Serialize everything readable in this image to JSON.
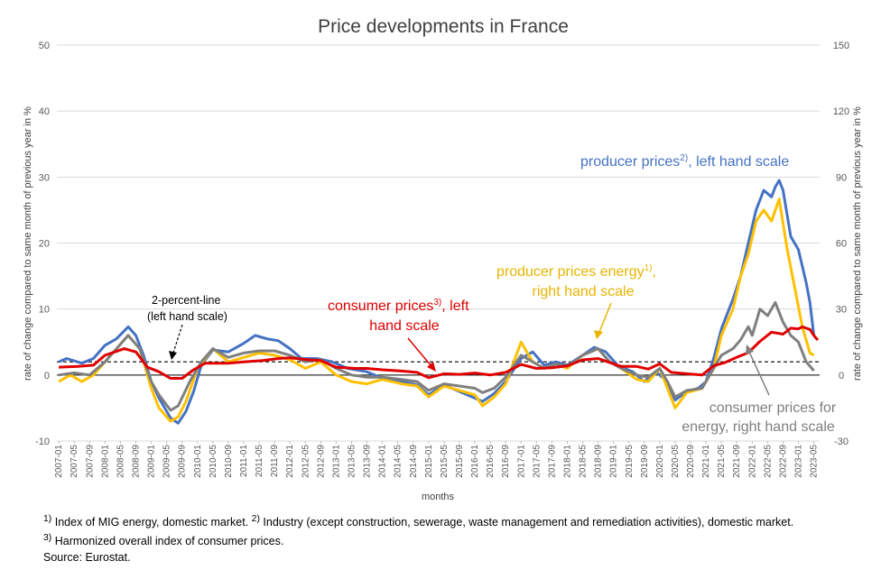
{
  "chart_data": {
    "type": "line",
    "title": "Price developments in France",
    "xlabel": "months",
    "ylabel_left": "rate of change compared to same month of previous year in %",
    "ylabel_right": "rate of change compared to same month of previous year in %",
    "ylim_left": [
      -10,
      50
    ],
    "ylim_right": [
      -30,
      150
    ],
    "yticks_left": [
      "-10",
      "0",
      "10",
      "20",
      "30",
      "40",
      "50"
    ],
    "yticks_right": [
      "-30",
      "0",
      "30",
      "60",
      "90",
      "120",
      "150"
    ],
    "x_start": "2007-01",
    "x_end": "2023-06",
    "x_tick_labels": [
      "2007-01",
      "2007-05",
      "2007-09",
      "2008-01",
      "2008-05",
      "2008-09",
      "2009-01",
      "2009-05",
      "2009-09",
      "2010-01",
      "2010-05",
      "2010-09",
      "2011-01",
      "2011-05",
      "2011-09",
      "2012-01",
      "2012-05",
      "2012-09",
      "2013-01",
      "2013-05",
      "2013-09",
      "2014-01",
      "2014-05",
      "2014-09",
      "2015-01",
      "2015-05",
      "2015-09",
      "2016-01",
      "2016-05",
      "2016-09",
      "2017-01",
      "2017-05",
      "2017-09",
      "2018-01",
      "2018-05",
      "2018-09",
      "2019-01",
      "2019-05",
      "2019-09",
      "2020-01",
      "2020-05",
      "2020-09",
      "2021-01",
      "2021-05",
      "2021-09",
      "2022-01",
      "2022-05",
      "2022-09",
      "2023-01",
      "2023-05"
    ],
    "reference_line": {
      "value": 2,
      "axis": "left"
    },
    "series": [
      {
        "key": "producer",
        "axis": "left",
        "color": "#4472C4",
        "points": [
          [
            "2007-01",
            2.0
          ],
          [
            "2007-03",
            2.5
          ],
          [
            "2007-07",
            1.8
          ],
          [
            "2007-10",
            2.5
          ],
          [
            "2008-01",
            4.5
          ],
          [
            "2008-04",
            5.5
          ],
          [
            "2008-07",
            7.3
          ],
          [
            "2008-09",
            6.0
          ],
          [
            "2008-11",
            3.0
          ],
          [
            "2009-01",
            -1.0
          ],
          [
            "2009-03",
            -3.5
          ],
          [
            "2009-06",
            -6.5
          ],
          [
            "2009-08",
            -7.3
          ],
          [
            "2009-10",
            -5.5
          ],
          [
            "2009-12",
            -2.5
          ],
          [
            "2010-02",
            1.5
          ],
          [
            "2010-05",
            3.8
          ],
          [
            "2010-09",
            3.5
          ],
          [
            "2011-01",
            4.8
          ],
          [
            "2011-04",
            6.0
          ],
          [
            "2011-07",
            5.5
          ],
          [
            "2011-10",
            5.2
          ],
          [
            "2012-01",
            4.0
          ],
          [
            "2012-04",
            2.5
          ],
          [
            "2012-08",
            2.5
          ],
          [
            "2012-12",
            2.0
          ],
          [
            "2013-04",
            1.0
          ],
          [
            "2013-09",
            0.5
          ],
          [
            "2014-01",
            -0.5
          ],
          [
            "2014-06",
            -1.0
          ],
          [
            "2014-10",
            -1.5
          ],
          [
            "2015-01",
            -3.0
          ],
          [
            "2015-05",
            -1.5
          ],
          [
            "2015-09",
            -2.5
          ],
          [
            "2016-01",
            -3.5
          ],
          [
            "2016-03",
            -4.0
          ],
          [
            "2016-06",
            -2.8
          ],
          [
            "2016-09",
            -1.0
          ],
          [
            "2017-01",
            2.5
          ],
          [
            "2017-04",
            3.5
          ],
          [
            "2017-07",
            1.5
          ],
          [
            "2017-10",
            2.0
          ],
          [
            "2018-01",
            1.5
          ],
          [
            "2018-05",
            3.0
          ],
          [
            "2018-08",
            4.2
          ],
          [
            "2018-11",
            3.5
          ],
          [
            "2019-02",
            1.5
          ],
          [
            "2019-06",
            0.5
          ],
          [
            "2019-09",
            -1.0
          ],
          [
            "2019-12",
            0.5
          ],
          [
            "2020-02",
            -0.5
          ],
          [
            "2020-05",
            -3.8
          ],
          [
            "2020-08",
            -2.5
          ],
          [
            "2020-11",
            -2.0
          ],
          [
            "2021-01",
            -1.0
          ],
          [
            "2021-03",
            2.5
          ],
          [
            "2021-05",
            7.0
          ],
          [
            "2021-08",
            11.5
          ],
          [
            "2021-10",
            15.0
          ],
          [
            "2021-12",
            20.0
          ],
          [
            "2022-02",
            25.0
          ],
          [
            "2022-04",
            28.0
          ],
          [
            "2022-06",
            27.0
          ],
          [
            "2022-07",
            28.5
          ],
          [
            "2022-08",
            29.5
          ],
          [
            "2022-09",
            28.0
          ],
          [
            "2022-11",
            21.0
          ],
          [
            "2023-01",
            19.0
          ],
          [
            "2023-03",
            14.0
          ],
          [
            "2023-04",
            11.0
          ],
          [
            "2023-05",
            6.0
          ]
        ]
      },
      {
        "key": "energy",
        "axis": "right",
        "color": "#FFC000",
        "points": [
          [
            "2007-01",
            -3.0
          ],
          [
            "2007-04",
            0.0
          ],
          [
            "2007-07",
            -3.0
          ],
          [
            "2007-10",
            0.0
          ],
          [
            "2008-01",
            6.0
          ],
          [
            "2008-04",
            12.0
          ],
          [
            "2008-07",
            18.0
          ],
          [
            "2008-10",
            12.0
          ],
          [
            "2009-01",
            -6.0
          ],
          [
            "2009-03",
            -15.0
          ],
          [
            "2009-06",
            -21.0
          ],
          [
            "2009-08",
            -19.0
          ],
          [
            "2009-10",
            -12.0
          ],
          [
            "2010-01",
            3.0
          ],
          [
            "2010-05",
            12.0
          ],
          [
            "2010-09",
            6.0
          ],
          [
            "2011-01",
            8.0
          ],
          [
            "2011-05",
            10.0
          ],
          [
            "2011-09",
            9.0
          ],
          [
            "2012-01",
            7.0
          ],
          [
            "2012-05",
            3.0
          ],
          [
            "2012-09",
            6.0
          ],
          [
            "2013-01",
            0.0
          ],
          [
            "2013-05",
            -3.0
          ],
          [
            "2013-09",
            -4.0
          ],
          [
            "2014-01",
            -2.0
          ],
          [
            "2014-06",
            -4.0
          ],
          [
            "2014-10",
            -5.0
          ],
          [
            "2015-01",
            -10.0
          ],
          [
            "2015-05",
            -5.0
          ],
          [
            "2015-09",
            -7.0
          ],
          [
            "2016-01",
            -9.0
          ],
          [
            "2016-03",
            -14.0
          ],
          [
            "2016-06",
            -10.0
          ],
          [
            "2016-09",
            -4.0
          ],
          [
            "2017-01",
            15.0
          ],
          [
            "2017-04",
            6.0
          ],
          [
            "2017-07",
            3.0
          ],
          [
            "2017-10",
            5.0
          ],
          [
            "2018-01",
            3.0
          ],
          [
            "2018-05",
            9.0
          ],
          [
            "2018-09",
            12.0
          ],
          [
            "2018-12",
            6.0
          ],
          [
            "2019-03",
            3.0
          ],
          [
            "2019-07",
            -2.0
          ],
          [
            "2019-10",
            -3.0
          ],
          [
            "2020-01",
            3.0
          ],
          [
            "2020-03",
            -6.0
          ],
          [
            "2020-05",
            -15.0
          ],
          [
            "2020-08",
            -8.0
          ],
          [
            "2020-12",
            -6.0
          ],
          [
            "2021-03",
            3.0
          ],
          [
            "2021-05",
            18.0
          ],
          [
            "2021-08",
            30.0
          ],
          [
            "2021-10",
            45.0
          ],
          [
            "2021-12",
            55.0
          ],
          [
            "2022-02",
            70.0
          ],
          [
            "2022-04",
            75.0
          ],
          [
            "2022-06",
            70.0
          ],
          [
            "2022-08",
            80.0
          ],
          [
            "2022-10",
            58.0
          ],
          [
            "2022-12",
            40.0
          ],
          [
            "2023-02",
            22.0
          ],
          [
            "2023-04",
            10.0
          ],
          [
            "2023-05",
            9.0
          ]
        ]
      },
      {
        "key": "cpi_energy",
        "axis": "right",
        "color": "#7F7F7F",
        "points": [
          [
            "2007-01",
            0.0
          ],
          [
            "2007-05",
            1.0
          ],
          [
            "2007-09",
            0.0
          ],
          [
            "2008-01",
            6.0
          ],
          [
            "2008-04",
            12.0
          ],
          [
            "2008-07",
            18.0
          ],
          [
            "2008-10",
            12.0
          ],
          [
            "2009-01",
            -3.0
          ],
          [
            "2009-03",
            -9.0
          ],
          [
            "2009-06",
            -16.0
          ],
          [
            "2009-08",
            -14.0
          ],
          [
            "2009-11",
            -3.0
          ],
          [
            "2010-02",
            6.0
          ],
          [
            "2010-05",
            12.0
          ],
          [
            "2010-09",
            8.0
          ],
          [
            "2011-01",
            10.0
          ],
          [
            "2011-05",
            11.0
          ],
          [
            "2011-09",
            11.0
          ],
          [
            "2012-01",
            9.0
          ],
          [
            "2012-05",
            6.0
          ],
          [
            "2012-09",
            7.0
          ],
          [
            "2013-01",
            3.0
          ],
          [
            "2013-05",
            0.0
          ],
          [
            "2013-09",
            -1.0
          ],
          [
            "2014-01",
            -1.0
          ],
          [
            "2014-06",
            -2.0
          ],
          [
            "2014-10",
            -3.0
          ],
          [
            "2015-01",
            -7.0
          ],
          [
            "2015-05",
            -4.0
          ],
          [
            "2015-09",
            -5.0
          ],
          [
            "2016-01",
            -6.0
          ],
          [
            "2016-03",
            -8.0
          ],
          [
            "2016-06",
            -6.0
          ],
          [
            "2016-09",
            -1.0
          ],
          [
            "2017-01",
            9.0
          ],
          [
            "2017-04",
            6.0
          ],
          [
            "2017-07",
            3.0
          ],
          [
            "2017-10",
            5.0
          ],
          [
            "2018-01",
            4.0
          ],
          [
            "2018-05",
            9.0
          ],
          [
            "2018-09",
            12.0
          ],
          [
            "2018-12",
            6.0
          ],
          [
            "2019-03",
            3.0
          ],
          [
            "2019-07",
            0.0
          ],
          [
            "2019-10",
            -1.0
          ],
          [
            "2020-01",
            3.0
          ],
          [
            "2020-03",
            -3.0
          ],
          [
            "2020-05",
            -10.0
          ],
          [
            "2020-08",
            -7.0
          ],
          [
            "2020-12",
            -6.0
          ],
          [
            "2021-03",
            3.0
          ],
          [
            "2021-05",
            9.0
          ],
          [
            "2021-08",
            12.0
          ],
          [
            "2021-10",
            16.0
          ],
          [
            "2021-12",
            22.0
          ],
          [
            "2022-01",
            18.0
          ],
          [
            "2022-03",
            30.0
          ],
          [
            "2022-05",
            27.0
          ],
          [
            "2022-07",
            33.0
          ],
          [
            "2022-09",
            24.0
          ],
          [
            "2022-11",
            18.0
          ],
          [
            "2023-01",
            15.0
          ],
          [
            "2023-03",
            6.0
          ],
          [
            "2023-05",
            2.0
          ]
        ]
      },
      {
        "key": "cpi",
        "axis": "left",
        "color": "#E00000",
        "points": [
          [
            "2007-01",
            1.2
          ],
          [
            "2007-06",
            1.3
          ],
          [
            "2007-10",
            1.5
          ],
          [
            "2008-01",
            3.0
          ],
          [
            "2008-06",
            4.0
          ],
          [
            "2008-09",
            3.5
          ],
          [
            "2008-12",
            1.2
          ],
          [
            "2009-03",
            0.5
          ],
          [
            "2009-06",
            -0.5
          ],
          [
            "2009-09",
            -0.5
          ],
          [
            "2009-12",
            0.8
          ],
          [
            "2010-03",
            1.8
          ],
          [
            "2010-09",
            1.8
          ],
          [
            "2011-01",
            2.0
          ],
          [
            "2011-06",
            2.2
          ],
          [
            "2011-10",
            2.5
          ],
          [
            "2012-01",
            2.6
          ],
          [
            "2012-06",
            2.3
          ],
          [
            "2012-09",
            2.2
          ],
          [
            "2013-01",
            1.2
          ],
          [
            "2013-06",
            1.0
          ],
          [
            "2013-09",
            1.0
          ],
          [
            "2014-01",
            0.8
          ],
          [
            "2014-06",
            0.6
          ],
          [
            "2014-10",
            0.4
          ],
          [
            "2015-01",
            -0.4
          ],
          [
            "2015-05",
            0.2
          ],
          [
            "2015-09",
            0.1
          ],
          [
            "2016-01",
            0.3
          ],
          [
            "2016-05",
            0.0
          ],
          [
            "2016-09",
            0.4
          ],
          [
            "2017-01",
            1.6
          ],
          [
            "2017-05",
            1.0
          ],
          [
            "2017-09",
            1.1
          ],
          [
            "2018-01",
            1.4
          ],
          [
            "2018-05",
            2.3
          ],
          [
            "2018-09",
            2.5
          ],
          [
            "2018-12",
            1.9
          ],
          [
            "2019-03",
            1.3
          ],
          [
            "2019-07",
            1.3
          ],
          [
            "2019-10",
            0.9
          ],
          [
            "2020-01",
            1.7
          ],
          [
            "2020-04",
            0.4
          ],
          [
            "2020-08",
            0.2
          ],
          [
            "2020-12",
            0.0
          ],
          [
            "2021-03",
            1.4
          ],
          [
            "2021-06",
            1.9
          ],
          [
            "2021-09",
            2.7
          ],
          [
            "2021-12",
            3.4
          ],
          [
            "2022-03",
            5.1
          ],
          [
            "2022-06",
            6.5
          ],
          [
            "2022-09",
            6.2
          ],
          [
            "2022-11",
            7.1
          ],
          [
            "2023-01",
            7.0
          ],
          [
            "2023-02",
            7.3
          ],
          [
            "2023-04",
            6.9
          ],
          [
            "2023-05",
            6.0
          ],
          [
            "2023-06",
            5.3
          ]
        ]
      }
    ]
  },
  "annotations": {
    "producer_main": "producer prices",
    "producer_sup": "2)",
    "producer_rest": ", left hand scale",
    "energy_line1_main": "producer prices energy",
    "energy_line1_sup": "1)",
    "energy_line1_rest": ",",
    "energy_line2": "right hand scale",
    "cpi_line1_main": "consumer prices",
    "cpi_line1_sup": "3)",
    "cpi_line1_rest": ", left",
    "cpi_line2": "hand scale",
    "cpi_energy_line1": "consumer prices for",
    "cpi_energy_line2": "energy, right hand scale",
    "two_percent_line1": "2-percent-line",
    "two_percent_line2": "(left hand scale)"
  },
  "footnotes": {
    "n1_sup": "1)",
    "n1_text": " Index of MIG energy, domestic market. ",
    "n2_sup": "2)",
    "n2_text": " Industry (except construction, sewerage, waste management and remediation activities), domestic market.",
    "n3_sup": "3)",
    "n3_text": " Harmonized overall index of consumer prices.",
    "source": "Source: Eurostat."
  }
}
